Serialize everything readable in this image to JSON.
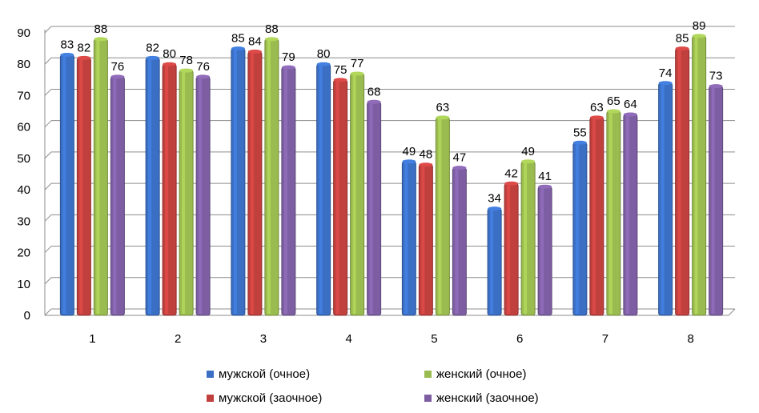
{
  "chart_data": {
    "type": "bar",
    "categories": [
      "1",
      "2",
      "3",
      "4",
      "5",
      "6",
      "7",
      "8"
    ],
    "series": [
      {
        "name": "мужской (очное)",
        "color": "#3A6FC4",
        "values": [
          83,
          82,
          85,
          80,
          49,
          34,
          55,
          74
        ]
      },
      {
        "name": "мужской (заочное)",
        "color": "#C0403E",
        "values": [
          82,
          80,
          84,
          75,
          48,
          42,
          63,
          85
        ]
      },
      {
        "name": "женский (очное)",
        "color": "#9ABB4F",
        "values": [
          88,
          78,
          88,
          77,
          63,
          49,
          65,
          89
        ]
      },
      {
        "name": "женский (заочное)",
        "color": "#7D5EA2",
        "values": [
          76,
          76,
          79,
          68,
          47,
          41,
          64,
          73
        ]
      }
    ],
    "yticks": [
      "0",
      "10",
      "20",
      "30",
      "40",
      "50",
      "60",
      "70",
      "80",
      "90"
    ],
    "ylim": [
      0,
      90
    ],
    "legend_position": "bottom"
  }
}
